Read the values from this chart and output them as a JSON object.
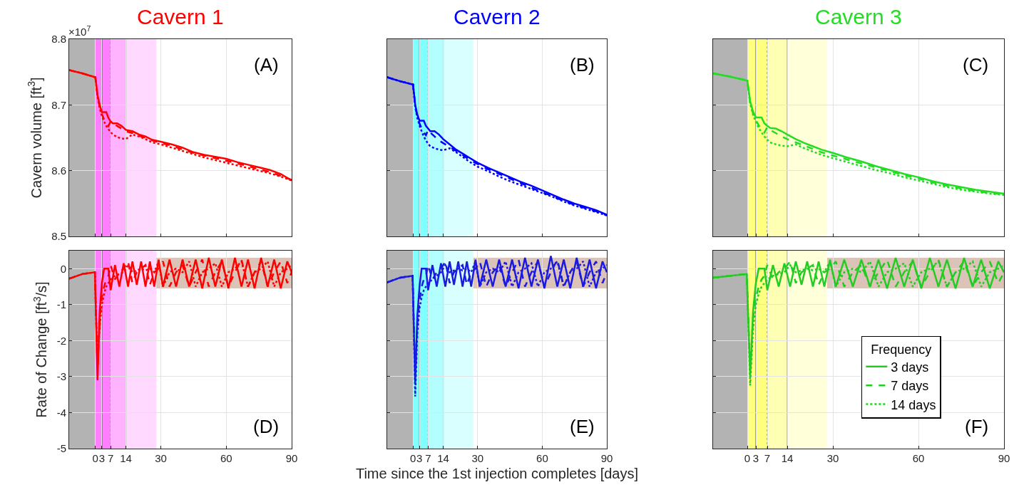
{
  "chart_data": [
    {
      "type": "line",
      "title": "Cavern 1",
      "ylabel": "Cavern volume [ft$^{3}$]",
      "annotations": [
        "×10$^{7}$",
        "(A)"
      ],
      "tick_labels": "y",
      "grid": true,
      "legend": false,
      "x": [
        -12,
        -6,
        0,
        1,
        2,
        3,
        4,
        5,
        6,
        7,
        8,
        10,
        12,
        14,
        17,
        20,
        23,
        26,
        30,
        35,
        40,
        45,
        50,
        55,
        60,
        65,
        70,
        75,
        80,
        85,
        90
      ],
      "xlim": [
        -12,
        90
      ],
      "xticks": [
        0,
        3,
        7,
        14,
        30,
        60,
        90
      ],
      "ylim": [
        8.5,
        8.8
      ],
      "yticks": [
        8.5,
        8.6,
        8.7,
        8.8
      ],
      "bands": [
        {
          "axis": "x",
          "from": -12,
          "to": 0,
          "color": "#b3b3b3"
        },
        {
          "axis": "x",
          "from": 0,
          "to": 7,
          "color": "#ff80ff"
        },
        {
          "axis": "x",
          "from": 7,
          "to": 14,
          "color": "#ffb3ff"
        },
        {
          "axis": "x",
          "from": 14,
          "to": 28,
          "color": "#ffd9ff"
        }
      ],
      "ref_lines": [
        {
          "axis": "x",
          "value": 3,
          "color": "#704070",
          "line_style": "solid"
        },
        {
          "axis": "x",
          "value": 7,
          "color": "#808080",
          "line_style": "dotted"
        },
        {
          "axis": "x",
          "value": 14,
          "color": "#a080a0",
          "line_style": "solid"
        }
      ],
      "series": [
        {
          "color": "#ff0000",
          "line_style": "solid",
          "values": [
            8.753,
            8.748,
            8.742,
            8.715,
            8.7,
            8.689,
            8.689,
            8.689,
            8.68,
            8.675,
            8.672,
            8.672,
            8.668,
            8.662,
            8.66,
            8.655,
            8.652,
            8.647,
            8.644,
            8.64,
            8.635,
            8.628,
            8.624,
            8.621,
            8.618,
            8.613,
            8.609,
            8.605,
            8.601,
            8.595,
            8.585
          ]
        },
        {
          "color": "#ff0000",
          "line_style": "dashed",
          "values": [
            8.753,
            8.748,
            8.742,
            8.713,
            8.697,
            8.686,
            8.678,
            8.672,
            8.668,
            8.675,
            8.672,
            8.668,
            8.664,
            8.66,
            8.657,
            8.653,
            8.65,
            8.646,
            8.642,
            8.638,
            8.632,
            8.627,
            8.623,
            8.619,
            8.615,
            8.611,
            8.607,
            8.602,
            8.598,
            8.592,
            8.586
          ]
        },
        {
          "color": "#ff0000",
          "line_style": "dotted",
          "values": [
            8.753,
            8.748,
            8.742,
            8.712,
            8.695,
            8.683,
            8.675,
            8.668,
            8.663,
            8.659,
            8.655,
            8.651,
            8.649,
            8.648,
            8.655,
            8.652,
            8.648,
            8.643,
            8.64,
            8.635,
            8.63,
            8.625,
            8.62,
            8.616,
            8.612,
            8.608,
            8.604,
            8.6,
            8.596,
            8.591,
            8.585
          ]
        }
      ]
    },
    {
      "type": "line",
      "title": "Cavern 2",
      "annotations": [
        "(B)"
      ],
      "tick_labels": false,
      "grid": true,
      "legend": false,
      "x": [
        -12,
        -6,
        0,
        1,
        2,
        3,
        4,
        5,
        6,
        7,
        8,
        10,
        12,
        14,
        17,
        20,
        23,
        26,
        30,
        35,
        40,
        45,
        50,
        55,
        60,
        65,
        70,
        75,
        80,
        85,
        90
      ],
      "xlim": [
        -12,
        90
      ],
      "xticks": [
        0,
        3,
        7,
        14,
        30,
        60,
        90
      ],
      "ylim": [
        8.5,
        8.8
      ],
      "yticks": [
        8.5,
        8.6,
        8.7,
        8.8
      ],
      "bands": [
        {
          "axis": "x",
          "from": -12,
          "to": 0,
          "color": "#b3b3b3"
        },
        {
          "axis": "x",
          "from": 0,
          "to": 7,
          "color": "#80ffff"
        },
        {
          "axis": "x",
          "from": 7,
          "to": 14,
          "color": "#b3ffff"
        },
        {
          "axis": "x",
          "from": 14,
          "to": 28,
          "color": "#d9ffff"
        }
      ],
      "ref_lines": [
        {
          "axis": "x",
          "value": 3,
          "color": "#407070",
          "line_style": "solid"
        },
        {
          "axis": "x",
          "value": 7,
          "color": "#808080",
          "line_style": "dotted"
        },
        {
          "axis": "x",
          "value": 14,
          "color": "#70a0a0",
          "line_style": "solid"
        }
      ],
      "series": [
        {
          "color": "#0000ff",
          "line_style": "solid",
          "values": [
            8.742,
            8.736,
            8.731,
            8.7,
            8.685,
            8.676,
            8.676,
            8.676,
            8.668,
            8.664,
            8.66,
            8.66,
            8.655,
            8.648,
            8.64,
            8.632,
            8.626,
            8.62,
            8.612,
            8.604,
            8.597,
            8.59,
            8.583,
            8.577,
            8.57,
            8.563,
            8.556,
            8.55,
            8.545,
            8.54,
            8.533
          ]
        },
        {
          "color": "#0000ff",
          "line_style": "dashed",
          "values": [
            8.742,
            8.736,
            8.731,
            8.698,
            8.682,
            8.672,
            8.664,
            8.658,
            8.654,
            8.662,
            8.658,
            8.652,
            8.646,
            8.642,
            8.636,
            8.63,
            8.624,
            8.617,
            8.61,
            8.602,
            8.595,
            8.588,
            8.581,
            8.574,
            8.567,
            8.561,
            8.554,
            8.548,
            8.543,
            8.538,
            8.532
          ]
        },
        {
          "color": "#0000ff",
          "line_style": "dotted",
          "values": [
            8.742,
            8.736,
            8.731,
            8.697,
            8.68,
            8.669,
            8.66,
            8.652,
            8.646,
            8.641,
            8.637,
            8.634,
            8.632,
            8.631,
            8.634,
            8.628,
            8.621,
            8.614,
            8.606,
            8.599,
            8.591,
            8.584,
            8.578,
            8.572,
            8.566,
            8.56,
            8.553,
            8.547,
            8.542,
            8.537,
            8.532
          ]
        }
      ]
    },
    {
      "type": "line",
      "title": "Cavern 3",
      "annotations": [
        "(C)"
      ],
      "tick_labels": false,
      "grid": true,
      "legend": false,
      "x": [
        -12,
        -6,
        0,
        1,
        2,
        3,
        4,
        5,
        6,
        7,
        8,
        10,
        12,
        14,
        17,
        20,
        23,
        26,
        30,
        35,
        40,
        45,
        50,
        55,
        60,
        65,
        70,
        75,
        80,
        85,
        90
      ],
      "xlim": [
        -12,
        90
      ],
      "xticks": [
        0,
        3,
        7,
        14,
        30,
        60,
        90
      ],
      "ylim": [
        8.5,
        8.8
      ],
      "yticks": [
        8.5,
        8.6,
        8.7,
        8.8
      ],
      "bands": [
        {
          "axis": "x",
          "from": -12,
          "to": 0,
          "color": "#b3b3b3"
        },
        {
          "axis": "x",
          "from": 0,
          "to": 7,
          "color": "#ffff80"
        },
        {
          "axis": "x",
          "from": 7,
          "to": 14,
          "color": "#ffffb3"
        },
        {
          "axis": "x",
          "from": 14,
          "to": 28,
          "color": "#ffffd9"
        }
      ],
      "ref_lines": [
        {
          "axis": "x",
          "value": 3,
          "color": "#707040",
          "line_style": "solid"
        },
        {
          "axis": "x",
          "value": 7,
          "color": "#808080",
          "line_style": "dotted"
        },
        {
          "axis": "x",
          "value": 14,
          "color": "#a0a070",
          "line_style": "solid"
        }
      ],
      "series": [
        {
          "color": "#22dd22",
          "line_style": "solid",
          "values": [
            8.748,
            8.743,
            8.737,
            8.705,
            8.69,
            8.681,
            8.681,
            8.681,
            8.672,
            8.668,
            8.665,
            8.664,
            8.66,
            8.655,
            8.648,
            8.642,
            8.637,
            8.632,
            8.627,
            8.62,
            8.614,
            8.607,
            8.601,
            8.595,
            8.59,
            8.584,
            8.579,
            8.575,
            8.571,
            8.568,
            8.565
          ]
        },
        {
          "color": "#22dd22",
          "line_style": "dashed",
          "values": [
            8.748,
            8.743,
            8.737,
            8.703,
            8.687,
            8.677,
            8.669,
            8.663,
            8.658,
            8.666,
            8.662,
            8.657,
            8.652,
            8.648,
            8.643,
            8.638,
            8.633,
            8.628,
            8.623,
            8.617,
            8.611,
            8.605,
            8.599,
            8.593,
            8.588,
            8.582,
            8.577,
            8.573,
            8.569,
            8.566,
            8.564
          ]
        },
        {
          "color": "#22dd22",
          "line_style": "dotted",
          "values": [
            8.748,
            8.743,
            8.737,
            8.702,
            8.685,
            8.674,
            8.665,
            8.658,
            8.652,
            8.647,
            8.643,
            8.64,
            8.638,
            8.637,
            8.64,
            8.634,
            8.629,
            8.624,
            8.619,
            8.613,
            8.607,
            8.601,
            8.596,
            8.59,
            8.585,
            8.58,
            8.575,
            8.571,
            8.568,
            8.565,
            8.563
          ]
        }
      ]
    },
    {
      "type": "line",
      "ylabel": "Rate of Change [ft$^{3}$/s]",
      "annotations": [
        "(D)"
      ],
      "grid": true,
      "legend": false,
      "x": [
        -12,
        -6,
        -0.2,
        0,
        1,
        2,
        3,
        4,
        5,
        6,
        7,
        9,
        11,
        13,
        15,
        17,
        19,
        21,
        23,
        25,
        27,
        29,
        31,
        34,
        37,
        40,
        43,
        46,
        49,
        52,
        55,
        58,
        61,
        64,
        67,
        70,
        73,
        76,
        79,
        82,
        85,
        88,
        90
      ],
      "xlim": [
        -12,
        90
      ],
      "xticks": [
        0,
        3,
        7,
        14,
        30,
        60,
        90
      ],
      "ylim": [
        -5,
        0.5
      ],
      "yticks": [
        -5,
        -4,
        -3,
        -2,
        -1,
        0
      ],
      "bands": [
        {
          "axis": "y",
          "from": -0.55,
          "to": 0.3,
          "color": "#dcc3b8"
        },
        {
          "axis": "x",
          "from": -12,
          "to": 0,
          "color": "#b3b3b3"
        },
        {
          "axis": "x",
          "from": 0,
          "to": 7,
          "color": "#ff80ff"
        },
        {
          "axis": "x",
          "from": 7,
          "to": 14,
          "color": "#ffb3ff"
        },
        {
          "axis": "x",
          "from": 14,
          "to": 28,
          "color": "#ffd9ff"
        }
      ],
      "ref_lines": [
        {
          "axis": "x",
          "value": 3,
          "color": "#704070",
          "line_style": "solid"
        },
        {
          "axis": "x",
          "value": 7,
          "color": "#808080",
          "line_style": "dotted"
        },
        {
          "axis": "x",
          "value": 14,
          "color": "#a080a0",
          "line_style": "solid"
        }
      ],
      "series": [
        {
          "color": "#ff0000",
          "line_style": "solid",
          "values": [
            -0.28,
            -0.15,
            -0.1,
            -0.6,
            -3.1,
            -1.2,
            -0.4,
            0,
            0,
            0,
            -0.6,
            0.1,
            -0.5,
            0.15,
            -0.5,
            0.2,
            -0.45,
            0.2,
            -0.5,
            0.2,
            -0.5,
            0.25,
            -0.5,
            0.25,
            -0.5,
            0.25,
            -0.5,
            0.25,
            -0.55,
            0.3,
            -0.5,
            0.25,
            -0.55,
            0.3,
            -0.5,
            0.25,
            -0.55,
            0.3,
            -0.5,
            0.25,
            -0.55,
            0.2,
            -0.1
          ]
        },
        {
          "color": "#ff0000",
          "line_style": "dashed",
          "values": [
            -0.28,
            -0.15,
            -0.1,
            -0.6,
            -2.8,
            -1.4,
            -0.8,
            -0.5,
            -0.3,
            -0.2,
            0.1,
            -0.3,
            -0.1,
            0,
            0.2,
            -0.4,
            -0.1,
            0,
            0.1,
            -0.45,
            -0.1,
            0,
            0.2,
            -0.5,
            -0.1,
            0.1,
            -0.5,
            -0.1,
            0.25,
            -0.5,
            -0.1,
            0.2,
            -0.5,
            -0.1,
            0.25,
            -0.5,
            -0.1,
            0.2,
            -0.5,
            -0.1,
            0.2,
            -0.4,
            -0.1
          ]
        },
        {
          "color": "#ff0000",
          "line_style": "dotted",
          "values": [
            -0.28,
            -0.15,
            -0.1,
            -0.6,
            -2.6,
            -1.6,
            -1,
            -0.7,
            -0.5,
            -0.4,
            -0.3,
            -0.2,
            -0.15,
            -0.1,
            0.1,
            -0.1,
            -0.05,
            0,
            -0.05,
            0,
            -0.1,
            0.2,
            -0.5,
            -0.1,
            0,
            -0.1,
            0.2,
            -0.5,
            -0.1,
            0,
            0.15,
            -0.5,
            -0.1,
            0,
            0.2,
            -0.5,
            -0.1,
            0,
            0.2,
            -0.5,
            -0.1,
            0,
            0.1
          ]
        }
      ]
    },
    {
      "type": "line",
      "xlabel": "Time since the 1st injection completes [days]",
      "annotations": [
        "(E)"
      ],
      "tick_labels": "x",
      "grid": true,
      "legend": false,
      "x": [
        -12,
        -6,
        -0.2,
        0,
        1,
        2,
        3,
        4,
        5,
        6,
        7,
        9,
        11,
        13,
        15,
        17,
        19,
        21,
        23,
        25,
        27,
        29,
        31,
        34,
        37,
        40,
        43,
        46,
        49,
        52,
        55,
        58,
        61,
        64,
        67,
        70,
        73,
        76,
        79,
        82,
        85,
        88,
        90
      ],
      "xlim": [
        -12,
        90
      ],
      "xticks": [
        0,
        3,
        7,
        14,
        30,
        60,
        90
      ],
      "ylim": [
        -5,
        0.5
      ],
      "yticks": [
        -5,
        -4,
        -3,
        -2,
        -1,
        0
      ],
      "bands": [
        {
          "axis": "y",
          "from": -0.55,
          "to": 0.3,
          "color": "#dcc3b8"
        },
        {
          "axis": "x",
          "from": -12,
          "to": 0,
          "color": "#b3b3b3"
        },
        {
          "axis": "x",
          "from": 0,
          "to": 7,
          "color": "#80ffff"
        },
        {
          "axis": "x",
          "from": 7,
          "to": 14,
          "color": "#b3ffff"
        },
        {
          "axis": "x",
          "from": 14,
          "to": 28,
          "color": "#d9ffff"
        }
      ],
      "ref_lines": [
        {
          "axis": "x",
          "value": 3,
          "color": "#407070",
          "line_style": "solid"
        },
        {
          "axis": "x",
          "value": 7,
          "color": "#808080",
          "line_style": "dotted"
        },
        {
          "axis": "x",
          "value": 14,
          "color": "#70a0a0",
          "line_style": "solid"
        }
      ],
      "series": [
        {
          "color": "#1a1ae0",
          "line_style": "solid",
          "values": [
            -0.38,
            -0.25,
            -0.2,
            -0.7,
            -3.2,
            -1.3,
            -0.5,
            0,
            0,
            0,
            -0.6,
            0.1,
            -0.5,
            0.15,
            -0.5,
            0.2,
            -0.45,
            0.2,
            -0.5,
            0.2,
            -0.5,
            0.25,
            -0.5,
            0.25,
            -0.5,
            0.25,
            -0.5,
            0.25,
            -0.55,
            0.3,
            -0.5,
            0.25,
            -0.55,
            0.35,
            -0.5,
            0.25,
            -0.55,
            0.3,
            -0.5,
            0.25,
            -0.55,
            0.2,
            -0.1
          ]
        },
        {
          "color": "#1a1ae0",
          "line_style": "dashed",
          "values": [
            -0.38,
            -0.25,
            -0.2,
            -0.7,
            -3,
            -1.5,
            -0.9,
            -0.5,
            -0.3,
            -0.2,
            0.1,
            -0.3,
            -0.1,
            0,
            0.2,
            -0.4,
            -0.1,
            0,
            0.1,
            -0.45,
            -0.1,
            0,
            0.2,
            -0.5,
            -0.1,
            0.1,
            -0.5,
            -0.1,
            0.25,
            -0.5,
            -0.1,
            0.2,
            -0.5,
            -0.1,
            0.25,
            -0.5,
            -0.1,
            0.2,
            -0.5,
            -0.1,
            0.2,
            -0.4,
            -0.1
          ]
        },
        {
          "color": "#1a1ae0",
          "line_style": "dotted",
          "values": [
            -0.38,
            -0.25,
            -0.2,
            -0.7,
            -3.55,
            -1.8,
            -1.1,
            -0.8,
            -0.6,
            -0.5,
            -0.4,
            -0.3,
            -0.2,
            -0.1,
            0.1,
            -0.1,
            -0.05,
            0,
            -0.05,
            0,
            -0.1,
            0.2,
            -0.5,
            -0.1,
            0,
            -0.1,
            0.2,
            -0.5,
            -0.1,
            0,
            0.15,
            -0.5,
            -0.1,
            0,
            0.2,
            -0.5,
            -0.1,
            0,
            0.2,
            -0.5,
            -0.1,
            0,
            0.1
          ]
        }
      ]
    },
    {
      "type": "line",
      "annotations": [
        "(F)"
      ],
      "tick_labels": "x",
      "grid": true,
      "legend": "bottom right",
      "legend_title": "Frequency",
      "x": [
        -12,
        -6,
        -0.2,
        0,
        1,
        2,
        3,
        4,
        5,
        6,
        7,
        9,
        11,
        13,
        15,
        17,
        19,
        21,
        23,
        25,
        27,
        29,
        31,
        34,
        37,
        40,
        43,
        46,
        49,
        52,
        55,
        58,
        61,
        64,
        67,
        70,
        73,
        76,
        79,
        82,
        85,
        88,
        90
      ],
      "xlim": [
        -12,
        90
      ],
      "xticks": [
        0,
        3,
        7,
        14,
        30,
        60,
        90
      ],
      "ylim": [
        -5,
        0.5
      ],
      "yticks": [
        -5,
        -4,
        -3,
        -2,
        -1,
        0
      ],
      "bands": [
        {
          "axis": "y",
          "from": -0.55,
          "to": 0.3,
          "color": "#dcc3b8"
        },
        {
          "axis": "x",
          "from": -12,
          "to": 0,
          "color": "#b3b3b3"
        },
        {
          "axis": "x",
          "from": 0,
          "to": 7,
          "color": "#ffff80"
        },
        {
          "axis": "x",
          "from": 7,
          "to": 14,
          "color": "#ffffb3"
        },
        {
          "axis": "x",
          "from": 14,
          "to": 28,
          "color": "#ffffd9"
        }
      ],
      "ref_lines": [
        {
          "axis": "x",
          "value": 3,
          "color": "#707040",
          "line_style": "solid"
        },
        {
          "axis": "x",
          "value": 7,
          "color": "#808080",
          "line_style": "dotted"
        },
        {
          "axis": "x",
          "value": 14,
          "color": "#a0a070",
          "line_style": "solid"
        }
      ],
      "series": [
        {
          "name": "3 days",
          "color": "#22cc22",
          "line_style": "solid",
          "values": [
            -0.25,
            -0.2,
            -0.15,
            -0.6,
            -3,
            -1.2,
            -0.4,
            0,
            0,
            0,
            -0.6,
            0.1,
            -0.5,
            0.15,
            -0.5,
            0.2,
            -0.45,
            0.2,
            -0.5,
            0.2,
            -0.5,
            0.25,
            -0.5,
            0.25,
            -0.5,
            0.25,
            -0.5,
            0.25,
            -0.55,
            0.3,
            -0.5,
            0.25,
            -0.55,
            0.3,
            -0.5,
            0.25,
            -0.55,
            0.3,
            -0.5,
            0.25,
            -0.55,
            0.2,
            -0.1
          ]
        },
        {
          "name": "7 days",
          "color": "#22cc22",
          "line_style": "dashed",
          "values": [
            -0.25,
            -0.2,
            -0.15,
            -0.6,
            -2.8,
            -1.4,
            -0.8,
            -0.5,
            -0.3,
            -0.2,
            0.1,
            -0.3,
            -0.1,
            0,
            0.2,
            -0.4,
            -0.1,
            0,
            0.1,
            -0.45,
            -0.1,
            0,
            0.2,
            -0.5,
            -0.1,
            0.1,
            -0.5,
            -0.1,
            0.25,
            -0.5,
            -0.1,
            0.2,
            -0.5,
            -0.1,
            0.25,
            -0.5,
            -0.1,
            0.2,
            -0.5,
            -0.1,
            0.2,
            -0.4,
            -0.1
          ]
        },
        {
          "name": "14 days",
          "color": "#22cc22",
          "line_style": "dotted",
          "values": [
            -0.25,
            -0.2,
            -0.15,
            -0.6,
            -3.25,
            -1.7,
            -1,
            -0.7,
            -0.5,
            -0.4,
            -0.3,
            -0.2,
            -0.15,
            -0.1,
            0.1,
            -0.1,
            -0.05,
            0,
            -0.05,
            0,
            -0.1,
            0.2,
            -0.5,
            -0.1,
            0,
            -0.1,
            0.2,
            -0.5,
            -0.1,
            0,
            0.15,
            -0.5,
            -0.1,
            0,
            0.2,
            -0.5,
            -0.1,
            0,
            0.2,
            -0.5,
            -0.1,
            0,
            0.1
          ]
        }
      ]
    }
  ]
}
